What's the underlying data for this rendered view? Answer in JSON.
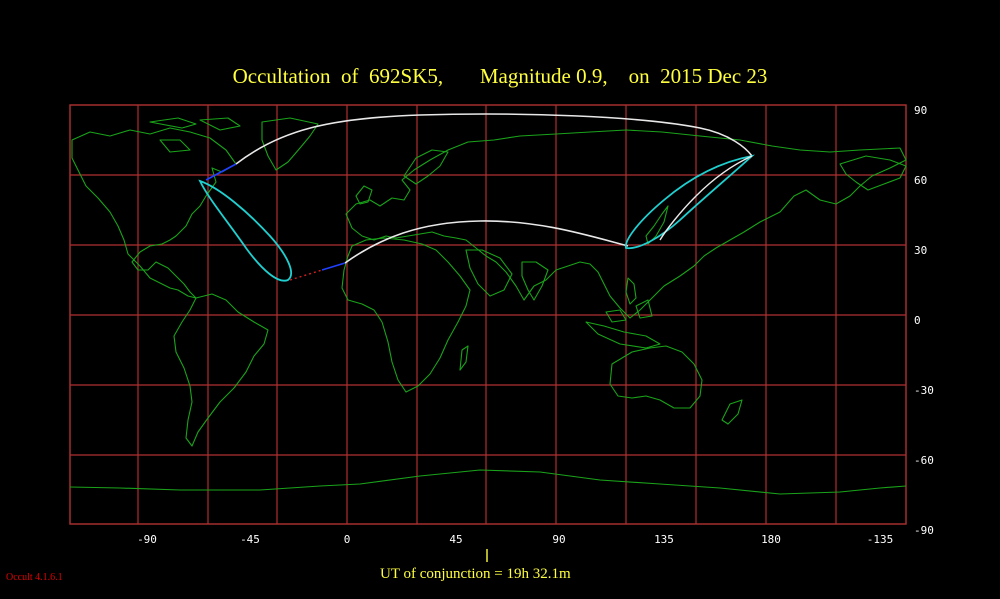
{
  "title": "Occultation  of  692SK5,       Magnitude 0.9,    on  2015 Dec 23",
  "ut_text": "UT of conjunction = 19h 32.1m",
  "version": "Occult 4.1.6.1",
  "colors": {
    "background": "#000000",
    "grid": "#b03030",
    "coast": "#1aa31a",
    "centerline": "#e8e8e8",
    "limit_curves": "#20d0d0",
    "night_path": "#2040ff",
    "title": "#ffff40"
  },
  "map": {
    "lon_ticks": [
      "-90",
      "-45",
      "0",
      "45",
      "90",
      "135",
      "180",
      "-135"
    ],
    "lat_ticks": [
      "90",
      "60",
      "30",
      "0",
      "-30",
      "-60",
      "-90"
    ]
  }
}
